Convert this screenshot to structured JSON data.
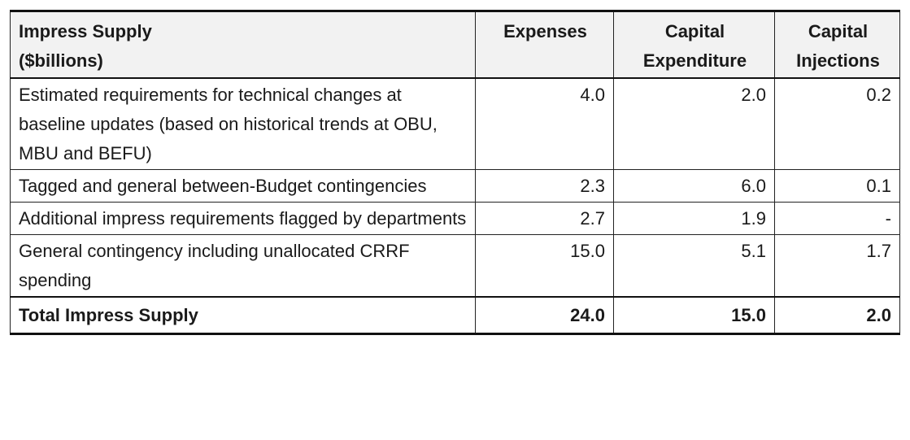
{
  "table": {
    "header": {
      "description_line1": "Impress Supply",
      "description_line2": "($billions)",
      "expenses": "Expenses",
      "capital_expenditure_line1": "Capital",
      "capital_expenditure_line2": "Expenditure",
      "capital_injections_line1": "Capital",
      "capital_injections_line2": "Injections"
    },
    "rows": [
      {
        "description": "Estimated requirements for technical changes at baseline updates (based on historical trends at OBU, MBU and BEFU)",
        "expenses": "4.0",
        "capital_expenditure": "2.0",
        "capital_injections": "0.2"
      },
      {
        "description": "Tagged and general between-Budget contingencies",
        "expenses": "2.3",
        "capital_expenditure": "6.0",
        "capital_injections": "0.1"
      },
      {
        "description": "Additional impress requirements flagged by departments",
        "expenses": "2.7",
        "capital_expenditure": "1.9",
        "capital_injections": "-"
      },
      {
        "description": "General contingency including unallocated CRRF spending",
        "expenses": "15.0",
        "capital_expenditure": "5.1",
        "capital_injections": "1.7"
      }
    ],
    "total": {
      "description": "Total Impress Supply",
      "expenses": "24.0",
      "capital_expenditure": "15.0",
      "capital_injections": "2.0"
    }
  }
}
